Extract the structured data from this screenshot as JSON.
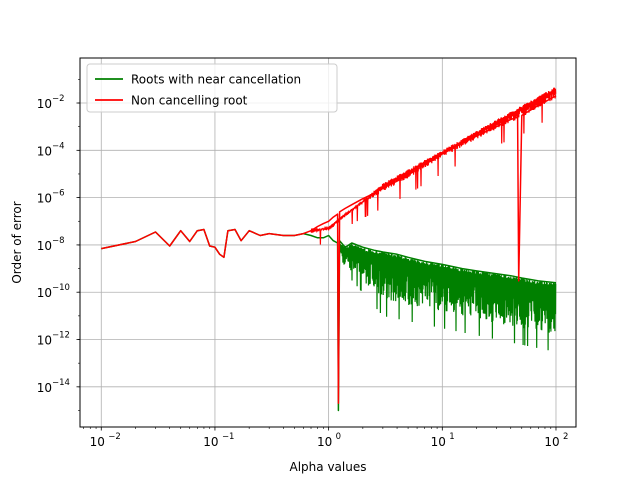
{
  "chart_data": {
    "type": "line",
    "title": "",
    "xlabel": "Alpha values",
    "ylabel": "Order of error",
    "xscale": "log",
    "yscale": "log",
    "xlim": [
      0.0065,
      150
    ],
    "ylim": [
      2e-16,
      0.8
    ],
    "grid": true,
    "legend_position": "top-left",
    "x_ticks": [
      {
        "value": 0.01,
        "base": "10",
        "exp": "−2"
      },
      {
        "value": 0.1,
        "base": "10",
        "exp": "−1"
      },
      {
        "value": 1,
        "base": "10",
        "exp": "0"
      },
      {
        "value": 10,
        "base": "10",
        "exp": "1"
      },
      {
        "value": 100,
        "base": "10",
        "exp": "2"
      }
    ],
    "y_ticks": [
      {
        "value": 1e-14,
        "base": "10",
        "exp": "−14"
      },
      {
        "value": 1e-12,
        "base": "10",
        "exp": "−12"
      },
      {
        "value": 1e-10,
        "base": "10",
        "exp": "−10"
      },
      {
        "value": 1e-08,
        "base": "10",
        "exp": "−8"
      },
      {
        "value": 1e-06,
        "base": "10",
        "exp": "−6"
      },
      {
        "value": 0.0001,
        "base": "10",
        "exp": "−4"
      },
      {
        "value": 0.01,
        "base": "10",
        "exp": "−2"
      }
    ],
    "series": [
      {
        "name": "Roots with  near cancellation",
        "color": "#008000",
        "x": [
          0.01,
          0.02,
          0.03,
          0.04,
          0.05,
          0.06,
          0.07,
          0.08,
          0.09,
          0.1,
          0.11,
          0.12,
          0.13,
          0.15,
          0.17,
          0.2,
          0.25,
          0.3,
          0.4,
          0.5,
          0.6,
          0.7,
          0.8,
          0.9,
          1.0,
          1.1,
          1.2,
          1.22,
          1.25,
          1.4,
          1.6,
          2.0,
          2.5,
          3.0,
          4.0,
          5.0,
          7.0,
          10.0,
          15.0,
          20.0,
          30.0,
          40.0,
          50.0,
          70.0,
          100.0
        ],
        "values": [
          7e-09,
          1.4e-08,
          3.5e-08,
          9e-09,
          4e-08,
          1.4e-08,
          4e-08,
          4.5e-08,
          9e-09,
          8e-09,
          4e-09,
          3e-09,
          4e-08,
          4.5e-08,
          1.5e-08,
          4e-08,
          2.5e-08,
          3e-08,
          2.5e-08,
          2.5e-08,
          3e-08,
          2.5e-08,
          2e-08,
          2e-08,
          2.5e-08,
          1.5e-08,
          1.2e-08,
          1e-15,
          1.5e-08,
          8e-09,
          1.2e-08,
          8e-09,
          6e-09,
          5e-09,
          4e-09,
          3e-09,
          2e-09,
          1.5e-09,
          1e-09,
          8e-10,
          6e-10,
          5e-10,
          4e-10,
          3e-10,
          2.5e-10
        ],
        "noise_lower": [
          1e-09,
          1e-11,
          3e-12,
          1e-12,
          3e-13
        ],
        "noise_lower_x": [
          1.3,
          3.0,
          10.0,
          30.0,
          100.0
        ]
      },
      {
        "name": "Non cancelling root",
        "color": "#ff0000",
        "x": [
          0.01,
          0.02,
          0.03,
          0.04,
          0.05,
          0.06,
          0.07,
          0.08,
          0.09,
          0.1,
          0.11,
          0.12,
          0.13,
          0.15,
          0.17,
          0.2,
          0.25,
          0.3,
          0.4,
          0.5,
          0.6,
          0.7,
          0.8,
          0.9,
          1.0,
          1.1,
          1.2,
          1.22,
          1.25,
          1.4,
          1.6,
          2.0,
          2.5,
          3.0,
          4.0,
          5.0,
          7.0,
          10.0,
          15.0,
          20.0,
          30.0,
          40.0,
          46.0,
          47.0,
          50.0,
          70.0,
          100.0
        ],
        "values": [
          7e-09,
          1.4e-08,
          3.5e-08,
          9e-09,
          4e-08,
          1.4e-08,
          4e-08,
          4.5e-08,
          9e-09,
          8e-09,
          4e-09,
          3e-09,
          4e-08,
          4.5e-08,
          1.5e-08,
          4e-08,
          2.5e-08,
          3e-08,
          2.5e-08,
          2.5e-08,
          3e-08,
          4e-08,
          6e-08,
          8e-08,
          1e-07,
          1.5e-07,
          2e-07,
          2e-15,
          2.5e-07,
          3.5e-07,
          5e-07,
          9e-07,
          1.5e-06,
          2.5e-06,
          5e-06,
          9e-06,
          2.5e-05,
          7e-05,
          0.0002,
          0.0004,
          0.001,
          0.002,
          0.0025,
          3e-10,
          0.003,
          0.008,
          0.02
        ],
        "noise_upper": [
          5e-08,
          4e-06,
          0.0001,
          0.002,
          0.05
        ],
        "noise_upper_x": [
          1.0,
          3.0,
          10.0,
          30.0,
          100.0
        ]
      }
    ]
  }
}
